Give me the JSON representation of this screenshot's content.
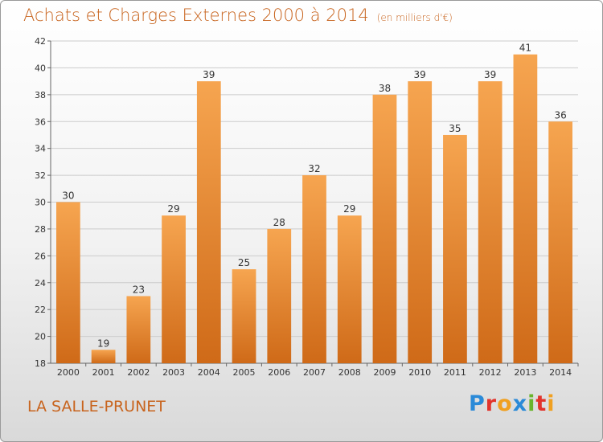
{
  "title": "Achats et Charges Externes 2000 à 2014",
  "subtitle": "(en milliers d'€)",
  "place": "LA SALLE-PRUNET",
  "logo": {
    "text": "Proxiti",
    "letters": [
      {
        "ch": "P",
        "color": "#2a8ad8"
      },
      {
        "ch": "r",
        "color": "#e2342c"
      },
      {
        "ch": "o",
        "color": "#f0a020"
      },
      {
        "ch": "x",
        "color": "#2a8ad8"
      },
      {
        "ch": "i",
        "color": "#6ab42c"
      },
      {
        "ch": "t",
        "color": "#e2342c"
      },
      {
        "ch": "i",
        "color": "#f0a020"
      }
    ]
  },
  "colors": {
    "accent": "#c8641e",
    "bar_top": "#f6a550",
    "bar_bottom": "#cf6a18",
    "grid": "#cccccc"
  },
  "chart_data": {
    "type": "bar",
    "categories": [
      "2000",
      "2001",
      "2002",
      "2003",
      "2004",
      "2005",
      "2006",
      "2007",
      "2008",
      "2009",
      "2010",
      "2011",
      "2012",
      "2013",
      "2014"
    ],
    "values": [
      30,
      19,
      23,
      29,
      39,
      25,
      28,
      32,
      29,
      38,
      39,
      35,
      39,
      41,
      36
    ],
    "data_labels": [
      "30",
      "19",
      "23",
      "29",
      "39",
      "25",
      "28",
      "32",
      "29",
      "38",
      "39",
      "35",
      "39",
      "41",
      "36"
    ],
    "title": "Achats et Charges Externes 2000 à 2014",
    "ylim": [
      18,
      42
    ],
    "yticks": [
      18,
      20,
      22,
      24,
      26,
      28,
      30,
      32,
      34,
      36,
      38,
      40,
      42
    ],
    "ytick_labels": [
      "18",
      "20",
      "22",
      "24",
      "26",
      "28",
      "30",
      "32",
      "34",
      "36",
      "38",
      "40",
      "42"
    ],
    "grid": true
  }
}
